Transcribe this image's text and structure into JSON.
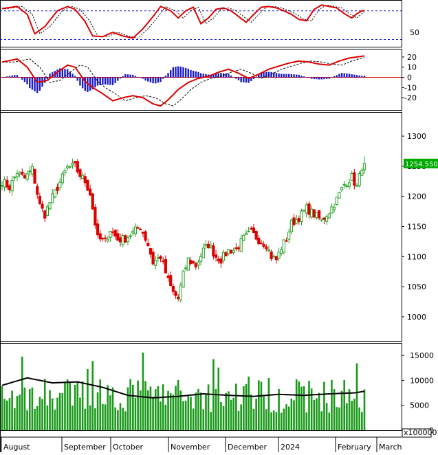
{
  "colors": {
    "up": "#22a022",
    "down": "#dd0000",
    "line": "#dd0000",
    "signal": "#000000",
    "hist": "#1a1acc",
    "ref": "#1a1acc",
    "volume": "#1a9a1a",
    "volume_ma": "#000000",
    "price_tag_bg": "#00aa00"
  },
  "x_axis": {
    "labels": [
      "August",
      "September",
      "October",
      "November",
      "December",
      "2024",
      "February",
      "March"
    ]
  },
  "panels": {
    "rsi": {
      "ticks": [
        "50"
      ],
      "ref_lines": [
        40,
        80
      ]
    },
    "macd": {
      "ticks": [
        "20",
        "10",
        "0",
        "-10",
        "-20"
      ]
    },
    "price": {
      "ticks": [
        "1300",
        "1250",
        "1200",
        "1150",
        "1100",
        "1050",
        "1000"
      ],
      "last_price_label": "1254.550"
    },
    "volume": {
      "ticks": [
        "15000",
        "10000",
        "5000",
        "0"
      ],
      "unit_label": "x100000"
    }
  },
  "chart_data": {
    "type": "candlestick",
    "y_price_range": [
      960,
      1340
    ],
    "y_volume_range": [
      0,
      17500
    ],
    "days": 113,
    "anchors": {
      "close_anchors": [
        [
          0,
          1225
        ],
        [
          3,
          1215
        ],
        [
          6,
          1240
        ],
        [
          9,
          1230
        ],
        [
          12,
          1245
        ],
        [
          15,
          1185
        ],
        [
          17,
          1170
        ],
        [
          19,
          1190
        ],
        [
          22,
          1215
        ],
        [
          26,
          1248
        ],
        [
          29,
          1250
        ],
        [
          31,
          1235
        ],
        [
          33,
          1225
        ],
        [
          35,
          1205
        ],
        [
          38,
          1130
        ],
        [
          41,
          1125
        ],
        [
          43,
          1145
        ],
        [
          46,
          1128
        ],
        [
          49,
          1130
        ],
        [
          52,
          1140
        ],
        [
          55,
          1150
        ],
        [
          58,
          1120
        ],
        [
          60,
          1090
        ],
        [
          63,
          1100
        ],
        [
          66,
          1060
        ],
        [
          68,
          1040
        ],
        [
          70,
          1030
        ],
        [
          72,
          1070
        ],
        [
          74,
          1095
        ],
        [
          77,
          1085
        ],
        [
          80,
          1110
        ],
        [
          82,
          1120
        ],
        [
          85,
          1100
        ],
        [
          87,
          1095
        ],
        [
          90,
          1110
        ],
        [
          93,
          1112
        ],
        [
          96,
          1130
        ],
        [
          99,
          1140
        ],
        [
          102,
          1128
        ],
        [
          105,
          1120
        ],
        [
          107,
          1100
        ],
        [
          109,
          1095
        ],
        [
          111,
          1115
        ],
        [
          113,
          1130
        ],
        [
          115,
          1155
        ],
        [
          118,
          1165
        ],
        [
          121,
          1180
        ],
        [
          124,
          1170
        ],
        [
          127,
          1160
        ],
        [
          130,
          1175
        ],
        [
          133,
          1195
        ],
        [
          136,
          1220
        ],
        [
          139,
          1232
        ],
        [
          141,
          1215
        ],
        [
          143,
          1250
        ],
        [
          144,
          1254.55
        ]
      ],
      "volume_ma_anchors": [
        [
          0,
          9000
        ],
        [
          10,
          10500
        ],
        [
          20,
          9500
        ],
        [
          30,
          9700
        ],
        [
          40,
          8600
        ],
        [
          50,
          7000
        ],
        [
          60,
          6500
        ],
        [
          70,
          6800
        ],
        [
          80,
          7300
        ],
        [
          90,
          7000
        ],
        [
          100,
          6800
        ],
        [
          110,
          7200
        ],
        [
          120,
          7000
        ],
        [
          130,
          7300
        ],
        [
          140,
          7500
        ],
        [
          144,
          7800
        ]
      ],
      "rsi_anchors": [
        [
          0,
          83
        ],
        [
          6,
          86
        ],
        [
          10,
          75
        ],
        [
          13,
          48
        ],
        [
          17,
          58
        ],
        [
          22,
          80
        ],
        [
          26,
          86
        ],
        [
          29,
          82
        ],
        [
          33,
          65
        ],
        [
          36,
          45
        ],
        [
          40,
          44
        ],
        [
          44,
          50
        ],
        [
          48,
          45
        ],
        [
          52,
          42
        ],
        [
          56,
          55
        ],
        [
          60,
          72
        ],
        [
          63,
          86
        ],
        [
          67,
          80
        ],
        [
          70,
          70
        ],
        [
          73,
          80
        ],
        [
          76,
          85
        ],
        [
          79,
          62
        ],
        [
          82,
          70
        ],
        [
          85,
          82
        ],
        [
          88,
          84
        ],
        [
          91,
          80
        ],
        [
          94,
          72
        ],
        [
          97,
          64
        ],
        [
          100,
          75
        ],
        [
          103,
          85
        ],
        [
          106,
          86
        ],
        [
          109,
          84
        ],
        [
          112,
          80
        ],
        [
          115,
          75
        ],
        [
          118,
          68
        ],
        [
          121,
          66
        ],
        [
          124,
          82
        ],
        [
          127,
          88
        ],
        [
          130,
          86
        ],
        [
          133,
          84
        ],
        [
          136,
          76
        ],
        [
          139,
          70
        ],
        [
          141,
          76
        ],
        [
          143,
          80
        ],
        [
          144,
          80
        ]
      ],
      "macd_anchors": [
        [
          0,
          15
        ],
        [
          6,
          18
        ],
        [
          10,
          10
        ],
        [
          14,
          -5
        ],
        [
          18,
          -3
        ],
        [
          22,
          5
        ],
        [
          26,
          12
        ],
        [
          29,
          10
        ],
        [
          33,
          -4
        ],
        [
          36,
          -10
        ],
        [
          40,
          -16
        ],
        [
          44,
          -23
        ],
        [
          48,
          -20
        ],
        [
          52,
          -18
        ],
        [
          56,
          -20
        ],
        [
          60,
          -26
        ],
        [
          63,
          -28
        ],
        [
          66,
          -22
        ],
        [
          70,
          -12
        ],
        [
          74,
          -5
        ],
        [
          78,
          -1
        ],
        [
          82,
          1
        ],
        [
          86,
          5
        ],
        [
          90,
          8
        ],
        [
          94,
          4
        ],
        [
          98,
          -1
        ],
        [
          102,
          3
        ],
        [
          106,
          8
        ],
        [
          110,
          11
        ],
        [
          114,
          14
        ],
        [
          118,
          16
        ],
        [
          122,
          15
        ],
        [
          126,
          13
        ],
        [
          130,
          12
        ],
        [
          134,
          16
        ],
        [
          138,
          19
        ],
        [
          141,
          20
        ],
        [
          144,
          21
        ]
      ]
    }
  }
}
